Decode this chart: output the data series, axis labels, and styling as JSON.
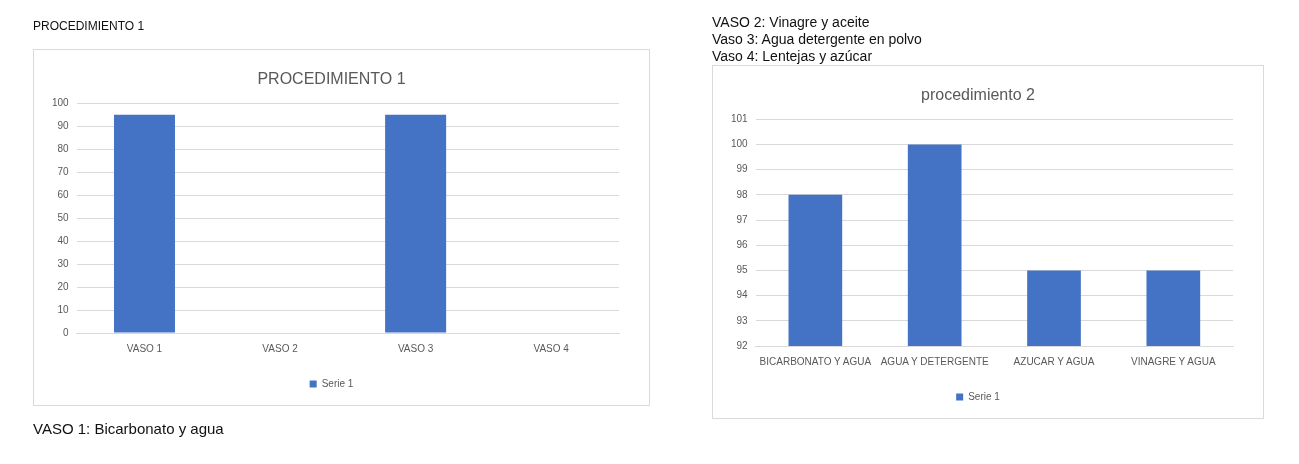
{
  "chart_data": [
    {
      "type": "bar",
      "title": "PROCEDIMIENTO 1",
      "categories": [
        "VASO 1",
        "VASO 2",
        "VASO 3",
        "VASO 4"
      ],
      "series": [
        {
          "name": "Serie 1",
          "color": "#4472c4",
          "values": [
            95,
            null,
            95,
            null
          ]
        }
      ],
      "ylim": [
        0,
        100
      ],
      "yticks": [
        0,
        10,
        20,
        30,
        40,
        50,
        60,
        70,
        80,
        90,
        100
      ],
      "grid": "y",
      "legend": "bottom",
      "annotations": [
        "PROCEDIMIENTO 1",
        "VASO 1: Bicarbonato y agua"
      ]
    },
    {
      "type": "bar",
      "title": "procedimiento 2",
      "categories": [
        "BICARBONATO Y AGUA",
        "AGUA Y DETERGENTE",
        "AZUCAR Y AGUA",
        "VINAGRE Y AGUA"
      ],
      "series": [
        {
          "name": "Serie 1",
          "color": "#4472c4",
          "values": [
            98,
            100,
            95,
            95
          ]
        }
      ],
      "ylim": [
        92,
        101
      ],
      "yticks": [
        92,
        93,
        94,
        95,
        96,
        97,
        98,
        99,
        100,
        101
      ],
      "grid": "y",
      "legend": "bottom",
      "annotations": [
        "VASO 2: Vinagre y aceite",
        "Vaso 3: Agua detergente en polvo",
        "Vaso 4: Lentejas y azúcar"
      ]
    }
  ]
}
